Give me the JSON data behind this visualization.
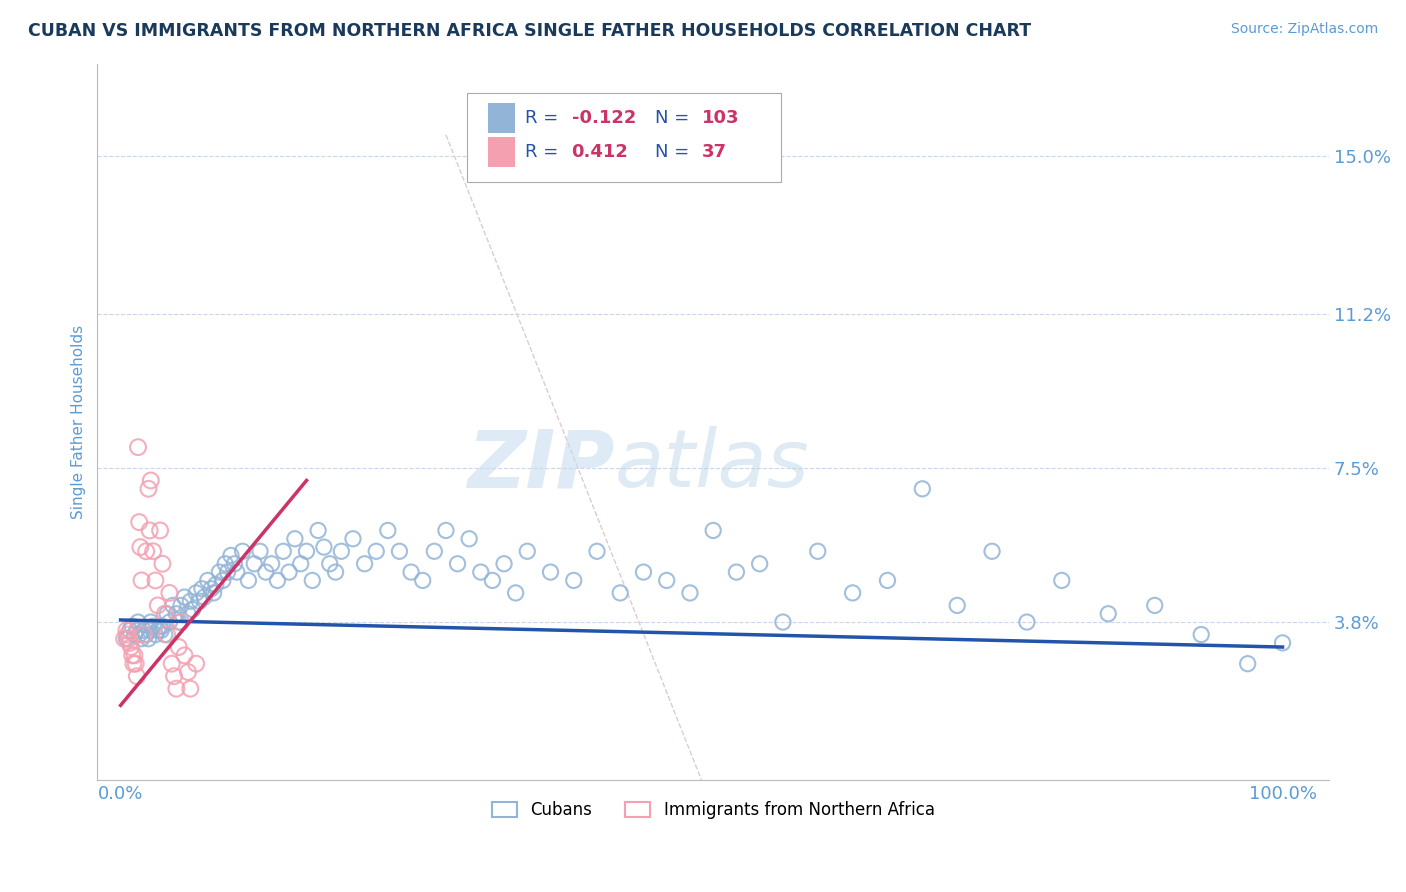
{
  "title": "CUBAN VS IMMIGRANTS FROM NORTHERN AFRICA SINGLE FATHER HOUSEHOLDS CORRELATION CHART",
  "source": "Source: ZipAtlas.com",
  "ylabel": "Single Father Households",
  "y_tick_labels": [
    "3.8%",
    "7.5%",
    "11.2%",
    "15.0%"
  ],
  "y_tick_values": [
    0.038,
    0.075,
    0.112,
    0.15
  ],
  "x_tick_labels": [
    "0.0%",
    "100.0%"
  ],
  "x_tick_values": [
    0.0,
    1.0
  ],
  "xlim": [
    -0.02,
    1.04
  ],
  "ylim": [
    0.0,
    0.172
  ],
  "title_color": "#1a3a5c",
  "source_color": "#5b9bd5",
  "axis_label_color": "#5b9bd5",
  "grid_color": "#c8d8e8",
  "cubans_color": "#92b4d7",
  "nafrica_color": "#f4a0b0",
  "trend_blue_color": "#2255aa",
  "trend_pink_color": "#cc3366",
  "ref_line_color": "#ddcccc",
  "cubans_label": "Cubans",
  "nafrica_label": "Immigrants from Northern Africa",
  "legend_r1_val": "-0.122",
  "legend_n1_val": "103",
  "legend_r2_val": "0.412",
  "legend_n2_val": "37",
  "trend_blue_x0": 0.0,
  "trend_blue_y0": 0.0385,
  "trend_blue_x1": 1.0,
  "trend_blue_y1": 0.032,
  "trend_pink_x0": 0.0,
  "trend_pink_y0": 0.018,
  "trend_pink_x1": 0.16,
  "trend_pink_y1": 0.072,
  "ref_line_x0": 0.28,
  "ref_line_y0": 0.155,
  "ref_line_x1": 0.5,
  "ref_line_y1": 0.0,
  "cubans_x": [
    0.005,
    0.008,
    0.01,
    0.012,
    0.014,
    0.015,
    0.016,
    0.018,
    0.02,
    0.022,
    0.024,
    0.025,
    0.026,
    0.028,
    0.03,
    0.032,
    0.034,
    0.035,
    0.036,
    0.038,
    0.04,
    0.042,
    0.045,
    0.048,
    0.05,
    0.052,
    0.055,
    0.058,
    0.06,
    0.062,
    0.065,
    0.068,
    0.07,
    0.072,
    0.075,
    0.078,
    0.08,
    0.082,
    0.085,
    0.088,
    0.09,
    0.092,
    0.095,
    0.098,
    0.1,
    0.105,
    0.11,
    0.115,
    0.12,
    0.125,
    0.13,
    0.135,
    0.14,
    0.145,
    0.15,
    0.155,
    0.16,
    0.165,
    0.17,
    0.175,
    0.18,
    0.185,
    0.19,
    0.2,
    0.21,
    0.22,
    0.23,
    0.24,
    0.25,
    0.26,
    0.27,
    0.28,
    0.29,
    0.3,
    0.31,
    0.32,
    0.33,
    0.34,
    0.35,
    0.37,
    0.39,
    0.41,
    0.43,
    0.45,
    0.47,
    0.49,
    0.51,
    0.53,
    0.55,
    0.57,
    0.6,
    0.63,
    0.66,
    0.69,
    0.72,
    0.75,
    0.78,
    0.81,
    0.85,
    0.89,
    0.93,
    0.97,
    1.0
  ],
  "cubans_y": [
    0.034,
    0.036,
    0.037,
    0.035,
    0.036,
    0.038,
    0.035,
    0.034,
    0.036,
    0.035,
    0.034,
    0.036,
    0.038,
    0.037,
    0.035,
    0.036,
    0.037,
    0.036,
    0.037,
    0.035,
    0.04,
    0.038,
    0.042,
    0.04,
    0.038,
    0.042,
    0.044,
    0.04,
    0.043,
    0.041,
    0.045,
    0.043,
    0.046,
    0.044,
    0.048,
    0.046,
    0.045,
    0.047,
    0.05,
    0.048,
    0.052,
    0.05,
    0.054,
    0.052,
    0.05,
    0.055,
    0.048,
    0.052,
    0.055,
    0.05,
    0.052,
    0.048,
    0.055,
    0.05,
    0.058,
    0.052,
    0.055,
    0.048,
    0.06,
    0.056,
    0.052,
    0.05,
    0.055,
    0.058,
    0.052,
    0.055,
    0.06,
    0.055,
    0.05,
    0.048,
    0.055,
    0.06,
    0.052,
    0.058,
    0.05,
    0.048,
    0.052,
    0.045,
    0.055,
    0.05,
    0.048,
    0.055,
    0.045,
    0.05,
    0.048,
    0.045,
    0.06,
    0.05,
    0.052,
    0.038,
    0.055,
    0.045,
    0.048,
    0.07,
    0.042,
    0.055,
    0.038,
    0.048,
    0.04,
    0.042,
    0.035,
    0.028,
    0.033
  ],
  "nafrica_x": [
    0.003,
    0.005,
    0.006,
    0.007,
    0.008,
    0.009,
    0.01,
    0.011,
    0.012,
    0.013,
    0.014,
    0.015,
    0.016,
    0.017,
    0.018,
    0.02,
    0.022,
    0.024,
    0.025,
    0.026,
    0.028,
    0.03,
    0.032,
    0.034,
    0.036,
    0.038,
    0.04,
    0.042,
    0.044,
    0.046,
    0.048,
    0.05,
    0.052,
    0.055,
    0.058,
    0.06,
    0.065
  ],
  "nafrica_y": [
    0.034,
    0.036,
    0.035,
    0.034,
    0.033,
    0.032,
    0.03,
    0.028,
    0.03,
    0.028,
    0.025,
    0.08,
    0.062,
    0.056,
    0.048,
    0.035,
    0.055,
    0.07,
    0.06,
    0.072,
    0.055,
    0.048,
    0.042,
    0.06,
    0.052,
    0.04,
    0.035,
    0.045,
    0.028,
    0.025,
    0.022,
    0.032,
    0.038,
    0.03,
    0.026,
    0.022,
    0.028
  ]
}
